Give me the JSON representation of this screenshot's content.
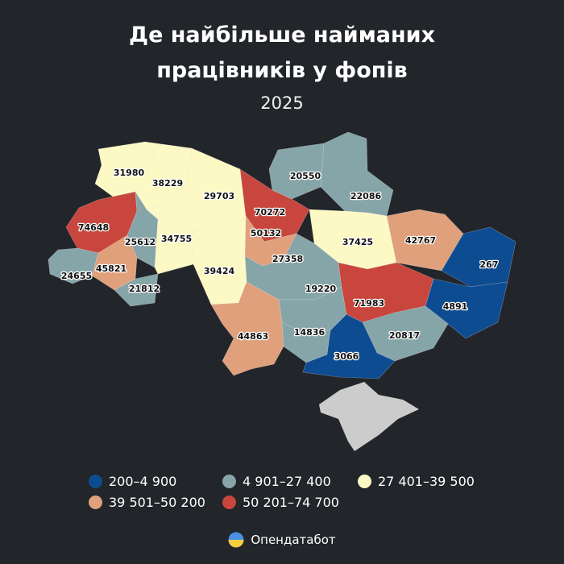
{
  "header": {
    "title_line1": "Де найбільше найманих",
    "title_line2": "працівників у фопів",
    "year": "2025"
  },
  "colors": {
    "background": "#222529",
    "class1": "#0e4c92",
    "class2": "#86a5a8",
    "class3": "#fdf9c4",
    "class4": "#e0a07c",
    "class5": "#c8463d",
    "crimea": "#cccccc"
  },
  "legend": [
    {
      "label": "200–4 900",
      "color": "#0e4c92"
    },
    {
      "label": "4 901–27 400",
      "color": "#86a5a8"
    },
    {
      "label": "27 401–39 500",
      "color": "#fdf9c4"
    },
    {
      "label": "39 501–50 200",
      "color": "#e0a07c"
    },
    {
      "label": "50 201–74 700",
      "color": "#c8463d"
    }
  ],
  "regions": [
    {
      "value": "31980",
      "class": 3
    },
    {
      "value": "38229",
      "class": 3
    },
    {
      "value": "20550",
      "class": 2
    },
    {
      "value": "22086",
      "class": 2
    },
    {
      "value": "29703",
      "class": 3
    },
    {
      "value": "70272",
      "class": 5
    },
    {
      "value": "74648",
      "class": 5
    },
    {
      "value": "50132",
      "class": 4
    },
    {
      "value": "37425",
      "class": 3
    },
    {
      "value": "42767",
      "class": 4
    },
    {
      "value": "25612",
      "class": 2
    },
    {
      "value": "34755",
      "class": 3
    },
    {
      "value": "45821",
      "class": 4
    },
    {
      "value": "27358",
      "class": 2
    },
    {
      "value": "267",
      "class": 1
    },
    {
      "value": "24655",
      "class": 2
    },
    {
      "value": "39424",
      "class": 3
    },
    {
      "value": "21812",
      "class": 2
    },
    {
      "value": "19220",
      "class": 2
    },
    {
      "value": "71983",
      "class": 5
    },
    {
      "value": "4891",
      "class": 1
    },
    {
      "value": "44863",
      "class": 4
    },
    {
      "value": "14836",
      "class": 2
    },
    {
      "value": "20817",
      "class": 2
    },
    {
      "value": "3066",
      "class": 1
    }
  ],
  "brand": {
    "name": "Опендатабот",
    "icon": "opendatabot-logo-icon"
  }
}
